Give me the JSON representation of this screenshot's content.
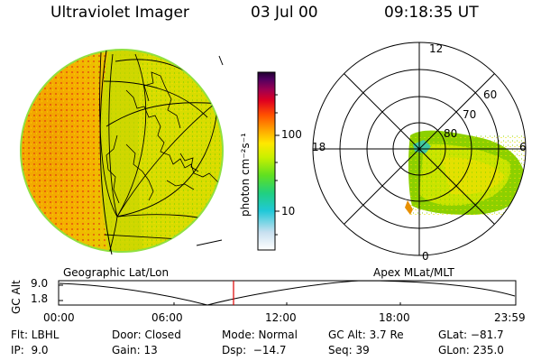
{
  "header": {
    "instrument": "Ultraviolet Imager",
    "date": "03 Jul 00",
    "time": "09:18:35 UT"
  },
  "colorbar": {
    "unit_label": "photon cm⁻²s⁻¹",
    "ticks": [
      "100",
      "10"
    ],
    "scale": "log"
  },
  "polar_plot": {
    "mlt_labels": [
      "12",
      "18",
      "6",
      "0"
    ],
    "lat_labels": [
      "60",
      "70",
      "80"
    ]
  },
  "panel_captions": {
    "left": "Geographic Lat/Lon",
    "right": "Apex MLat/MLT"
  },
  "altitude_plot": {
    "y_axis_label": "GC Alt",
    "y_ticks": [
      "9.0",
      "1.8"
    ],
    "x_ticks": [
      "00:00",
      "06:00",
      "12:00",
      "18:00",
      "23:59"
    ],
    "current_time_marker": "09:18:35",
    "marker_color": "#dd0000"
  },
  "footer": {
    "flt": "Flt: LBHL",
    "ip": "IP:  9.0",
    "door": "Door: Closed",
    "gain": "Gain: 13",
    "mode": "Mode: Normal",
    "dsp": "Dsp:  −14.7",
    "gc_alt": "GC Alt: 3.7 Re",
    "seq": "Seq: 39",
    "glat": "GLat: −81.7",
    "glon": "GLon: 235.0"
  },
  "colors": {
    "globe_day": "#f5a400",
    "globe_night": "#c8d800",
    "auroral_green": "#8dd000"
  }
}
